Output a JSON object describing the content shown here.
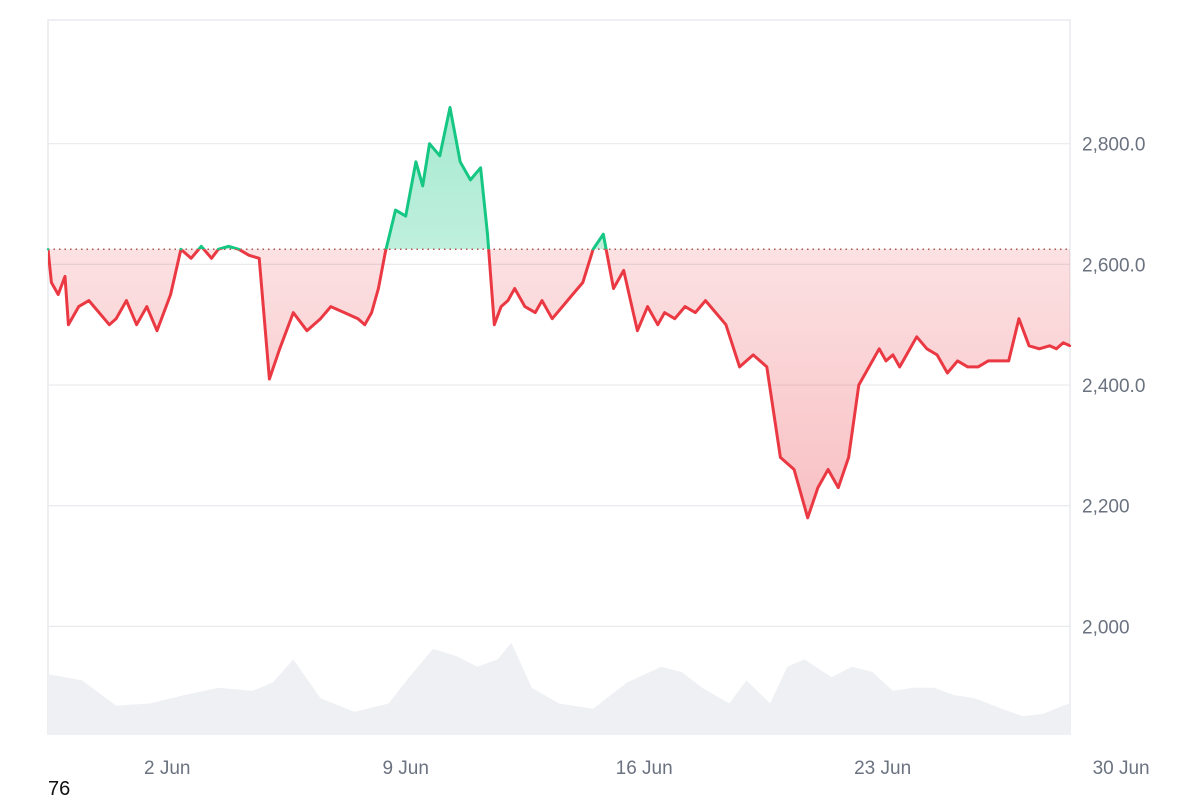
{
  "corner_label": "76",
  "colors": {
    "up": "#16c784",
    "down": "#ea3943",
    "up_fill": "#16c784",
    "down_fill": "#ea3943",
    "baseline_dots": "#b35353",
    "grid": "#e8eaee",
    "axis_text": "#6b7280",
    "volume": "#eef0f3"
  },
  "chart_data": {
    "type": "area",
    "baseline": 2625,
    "grid": true,
    "ylim": [
      1820,
      3005
    ],
    "xlim": [
      0,
      30
    ],
    "yticks": [
      {
        "value": 2800,
        "label": "2,800.0"
      },
      {
        "value": 2600,
        "label": "2,600.0"
      },
      {
        "value": 2400,
        "label": "2,400.0"
      },
      {
        "value": 2200,
        "label": "2,200"
      },
      {
        "value": 2000,
        "label": "2,000"
      }
    ],
    "xticks": [
      {
        "value": 3.5,
        "label": "2 Jun"
      },
      {
        "value": 10.5,
        "label": "9 Jun"
      },
      {
        "value": 17.5,
        "label": "16 Jun"
      },
      {
        "value": 24.5,
        "label": "23 Jun"
      },
      {
        "value": 31.5,
        "label": "30 Jun"
      }
    ],
    "series": [
      {
        "x": [
          0,
          0.1,
          0.3,
          0.5,
          0.6,
          0.9,
          1.2,
          1.5,
          1.8,
          2.0,
          2.3,
          2.6,
          2.9,
          3.2,
          3.6,
          3.9,
          4.2,
          4.5,
          4.8,
          5.0,
          5.3,
          5.6,
          5.9,
          6.2,
          6.5,
          6.8,
          7.2,
          7.6,
          8.0,
          8.3,
          8.7,
          9.1,
          9.3,
          9.5,
          9.7,
          9.9,
          10.2,
          10.5,
          10.8,
          11.0,
          11.2,
          11.5,
          11.8,
          12.1,
          12.4,
          12.7,
          12.9,
          13.1,
          13.3,
          13.5,
          13.7,
          14.0,
          14.3,
          14.5,
          14.8,
          15.1,
          15.4,
          15.7,
          16.0,
          16.3,
          16.6,
          16.9,
          17.1,
          17.3,
          17.6,
          17.9,
          18.1,
          18.4,
          18.7,
          19.0,
          19.3,
          19.6,
          19.9,
          20.3,
          20.7,
          21.1,
          21.5,
          21.9,
          22.3,
          22.6,
          22.9,
          23.2,
          23.5,
          23.8,
          24.0,
          24.2,
          24.4,
          24.6,
          24.8,
          25.0,
          25.2,
          25.5,
          25.8,
          26.1,
          26.4,
          26.7,
          27.0,
          27.3,
          27.6,
          27.9,
          28.2,
          28.5,
          28.8,
          29.1,
          29.4,
          29.6,
          29.8,
          30.0
        ],
        "y": [
          2625,
          2570,
          2550,
          2580,
          2500,
          2530,
          2540,
          2520,
          2500,
          2510,
          2540,
          2500,
          2530,
          2490,
          2550,
          2625,
          2610,
          2630,
          2610,
          2625,
          2630,
          2625,
          2615,
          2610,
          2410,
          2460,
          2520,
          2490,
          2510,
          2530,
          2520,
          2510,
          2500,
          2520,
          2560,
          2620,
          2690,
          2680,
          2770,
          2730,
          2800,
          2780,
          2860,
          2770,
          2740,
          2760,
          2650,
          2500,
          2530,
          2540,
          2560,
          2530,
          2520,
          2540,
          2510,
          2530,
          2550,
          2570,
          2625,
          2650,
          2560,
          2590,
          2540,
          2490,
          2530,
          2500,
          2520,
          2510,
          2530,
          2520,
          2540,
          2520,
          2500,
          2430,
          2450,
          2430,
          2280,
          2260,
          2180,
          2230,
          2260,
          2230,
          2280,
          2400,
          2420,
          2440,
          2460,
          2440,
          2450,
          2430,
          2450,
          2480,
          2460,
          2450,
          2420,
          2440,
          2430,
          2430,
          2440,
          2440,
          2440,
          2510,
          2465,
          2460,
          2465,
          2460,
          2470,
          2465
        ]
      }
    ],
    "volume": {
      "x": [
        0,
        1,
        2,
        3,
        4,
        5,
        6,
        6.6,
        7.2,
        8,
        9,
        10,
        10.6,
        11.3,
        12,
        12.6,
        13.2,
        13.6,
        14.2,
        15,
        16,
        17,
        18,
        18.6,
        19.2,
        20,
        20.5,
        21.2,
        21.7,
        22.2,
        23,
        23.6,
        24.2,
        24.8,
        25.4,
        26,
        26.6,
        27.2,
        28,
        28.6,
        29.2,
        29.8,
        30
      ],
      "y": [
        0.58,
        0.52,
        0.28,
        0.3,
        0.38,
        0.45,
        0.42,
        0.5,
        0.72,
        0.35,
        0.22,
        0.3,
        0.55,
        0.82,
        0.75,
        0.65,
        0.72,
        0.88,
        0.45,
        0.3,
        0.25,
        0.5,
        0.65,
        0.6,
        0.45,
        0.3,
        0.52,
        0.3,
        0.65,
        0.72,
        0.55,
        0.65,
        0.6,
        0.42,
        0.45,
        0.45,
        0.38,
        0.35,
        0.25,
        0.18,
        0.2,
        0.28,
        0.3
      ]
    }
  }
}
